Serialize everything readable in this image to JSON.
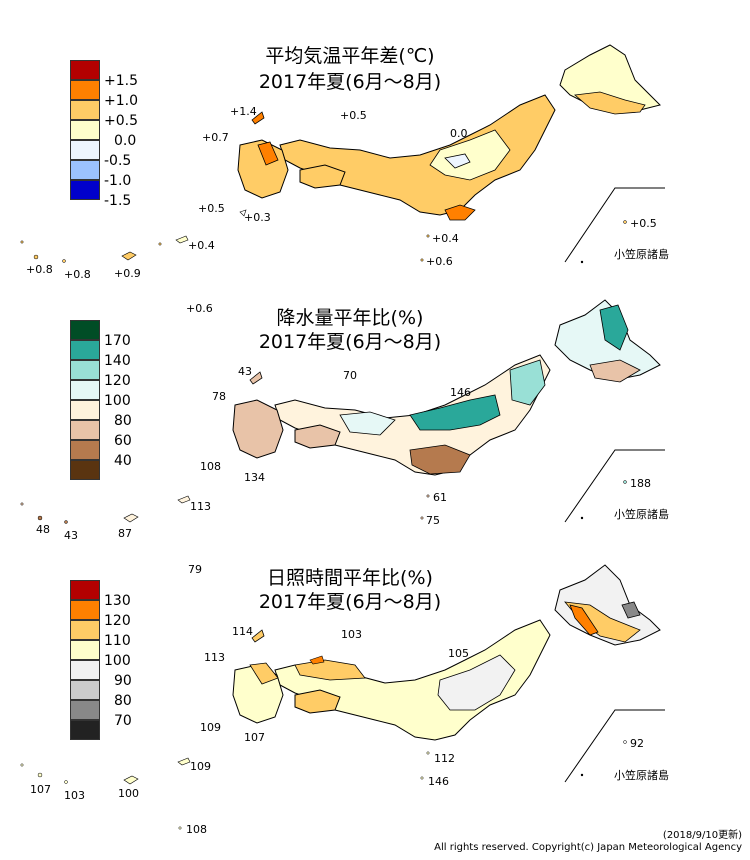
{
  "panels": [
    {
      "id": "temperature",
      "title_line1": "平均気温平年差(℃)",
      "title_line2": "2017年夏(6月～8月)",
      "legend": [
        {
          "label": "+1.5",
          "color": "#b30000"
        },
        {
          "label": "+1.0",
          "color": "#ff8000"
        },
        {
          "label": "+0.5",
          "color": "#ffcc66"
        },
        {
          "label": "0.0",
          "color": "#ffffcc"
        },
        {
          "label": "-0.5",
          "color": "#e8f4ff"
        },
        {
          "label": "-1.0",
          "color": "#8fb8ff"
        },
        {
          "label": "-1.5",
          "color": "#0000cc"
        }
      ],
      "station_labels": [
        "+1.4",
        "+0.5",
        "+0.7",
        "0.0",
        "+0.5",
        "+0.3",
        "+0.4",
        "+0.6",
        "+0.5",
        "+0.8",
        "+0.8",
        "+0.9",
        "+0.4",
        "+0.6"
      ],
      "ogasawara_label": "小笠原諸島"
    },
    {
      "id": "precipitation",
      "title_line1": "降水量平年比(%)",
      "title_line2": "2017年夏(6月～8月)",
      "legend": [
        {
          "label": "",
          "color": "#004d26"
        },
        {
          "label": "170",
          "color": "#2aa89a"
        },
        {
          "label": "140",
          "color": "#99e0d6"
        },
        {
          "label": "120",
          "color": "#e6f8f6"
        },
        {
          "label": "100",
          "color": "#fff3dd"
        },
        {
          "label": "80",
          "color": "#e8c3a8"
        },
        {
          "label": "60",
          "color": "#b57a4e"
        },
        {
          "label": "40",
          "color": "#5a3410"
        }
      ],
      "station_labels": [
        "43",
        "70",
        "78",
        "146",
        "108",
        "134",
        "61",
        "75",
        "188",
        "113",
        "48",
        "43",
        "87"
      ],
      "ogasawara_label": "小笠原諸島"
    },
    {
      "id": "sunshine",
      "title_line1": "日照時間平年比(%)",
      "title_line2": "2017年夏(6月～8月)",
      "legend": [
        {
          "label": "",
          "color": "#b30000"
        },
        {
          "label": "130",
          "color": "#ff8000"
        },
        {
          "label": "120",
          "color": "#ffcc66"
        },
        {
          "label": "110",
          "color": "#ffffcc"
        },
        {
          "label": "100",
          "color": "#f2f2f2"
        },
        {
          "label": "90",
          "color": "#cccccc"
        },
        {
          "label": "80",
          "color": "#888888"
        },
        {
          "label": "70",
          "color": "#222222"
        }
      ],
      "station_labels": [
        "79",
        "114",
        "103",
        "113",
        "105",
        "109",
        "107",
        "112",
        "92",
        "146",
        "107",
        "103",
        "100",
        "109",
        "108"
      ],
      "ogasawara_label": "小笠原諸島"
    }
  ],
  "footer": {
    "updated": "(2018/9/10更新)",
    "copyright": "All rights reserved. Copyright(c) Japan Meteorological Agency"
  }
}
